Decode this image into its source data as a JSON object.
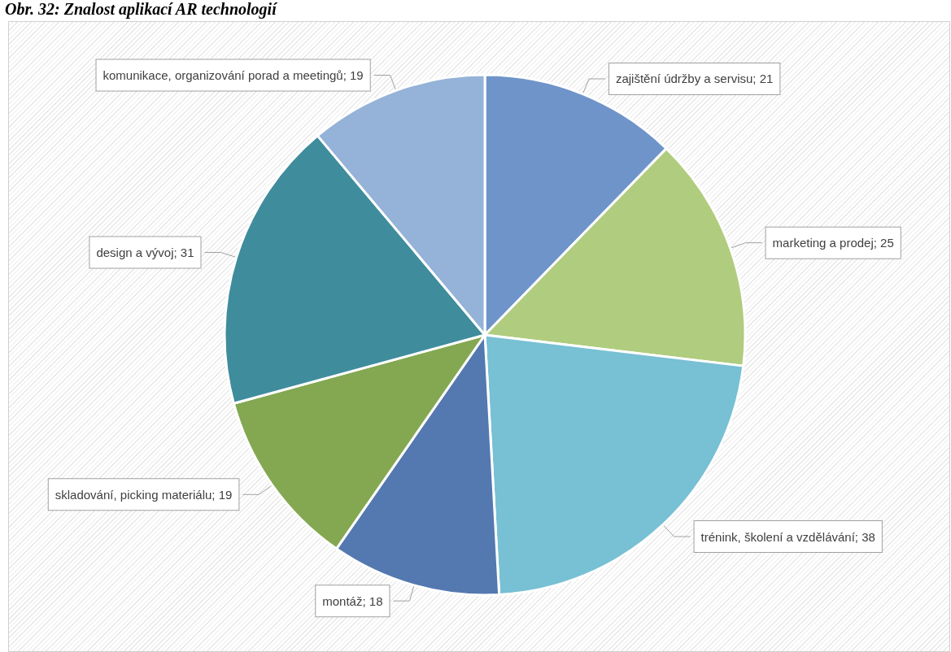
{
  "chart_data": {
    "type": "pie",
    "title": "Obr. 32: Znalost aplikací AR technologií",
    "categories": [
      "zajištění údržby a servisu",
      "marketing a prodej",
      "trénink, školení a vzdělávání",
      "montáž",
      "skladování, picking materiálu",
      "design a vývoj",
      "komunikace, organizování porad a meetingů"
    ],
    "values": [
      21,
      25,
      38,
      18,
      19,
      31,
      19
    ],
    "colors": [
      "#6f94c9",
      "#b0cc7e",
      "#78c0d4",
      "#5478b0",
      "#84a852",
      "#3f8c9c",
      "#95b2d8"
    ],
    "value_labels": [
      "; 21",
      "; 25",
      "; 38",
      "; 18",
      "; 19",
      "; 31",
      "; 19"
    ],
    "legend": false
  }
}
